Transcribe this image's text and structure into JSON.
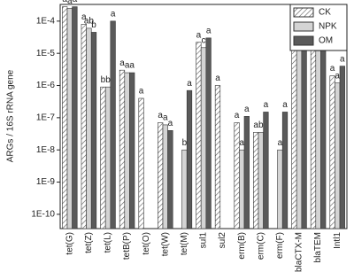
{
  "chart_data": {
    "type": "bar",
    "y_label": "ARGs / 16S rRNA gene",
    "log_y": true,
    "categories": [
      "tet(G)",
      "tet(Z)",
      "tet(L)",
      "tetB(P)",
      "tet(O)",
      "tet(W)",
      "tet(M)",
      "sul1",
      "sul2",
      "erm(B)",
      "erm(C)",
      "erm(F)",
      "blaCTX-M",
      "blaTEM",
      "Intl1"
    ],
    "series": [
      {
        "name": "CK",
        "color": "#ffffff",
        "hatch": true,
        "values": [
          0.00028,
          8e-05,
          9e-07,
          3e-06,
          4e-07,
          7e-08,
          null,
          2.2e-05,
          1e-06,
          7e-08,
          3.5e-08,
          null,
          3.5e-05,
          1.3e-05,
          2e-06
        ],
        "letters": [
          "a",
          "a",
          "b",
          "a",
          "a",
          "a",
          null,
          "a",
          "a",
          "a",
          "a",
          null,
          "a",
          "a",
          "a"
        ]
      },
      {
        "name": "NPK",
        "color": "#d4d4d4",
        "hatch": false,
        "values": [
          0.00025,
          6e-05,
          9e-07,
          2.5e-06,
          null,
          6e-08,
          1e-08,
          1.5e-05,
          null,
          1e-08,
          3.5e-08,
          1e-08,
          2e-05,
          1.2e-05,
          1.2e-06
        ],
        "letters": [
          "a",
          "ab",
          "b",
          "a",
          null,
          "a",
          "b",
          "c",
          null,
          "a",
          "b",
          "a",
          "a",
          "a",
          "a"
        ]
      },
      {
        "name": "OM",
        "color": "#5a5a5a",
        "hatch": false,
        "values": [
          0.00028,
          4.5e-05,
          0.0001,
          2.5e-06,
          null,
          4e-08,
          7e-07,
          3e-05,
          null,
          1.1e-07,
          1.5e-07,
          1.5e-07,
          2e-05,
          1.4e-05,
          4e-06
        ],
        "letters": [
          "a",
          "b",
          "a",
          "a",
          null,
          "a",
          "a",
          "a",
          null,
          "a",
          "a",
          "a",
          "a",
          "a",
          "a"
        ]
      }
    ],
    "ylim": [
      3.6e-11,
      0.00033
    ],
    "yticks": [
      {
        "value": 1e-10,
        "label": "1E-10"
      },
      {
        "value": 1e-09,
        "label": "1E-9"
      },
      {
        "value": 1e-08,
        "label": "1E-8"
      },
      {
        "value": 1e-07,
        "label": "1E-7"
      },
      {
        "value": 1e-06,
        "label": "1E-6"
      },
      {
        "value": 1e-05,
        "label": "1E-5"
      },
      {
        "value": 0.0001,
        "label": "1E-4"
      }
    ],
    "legend": "upper right"
  }
}
